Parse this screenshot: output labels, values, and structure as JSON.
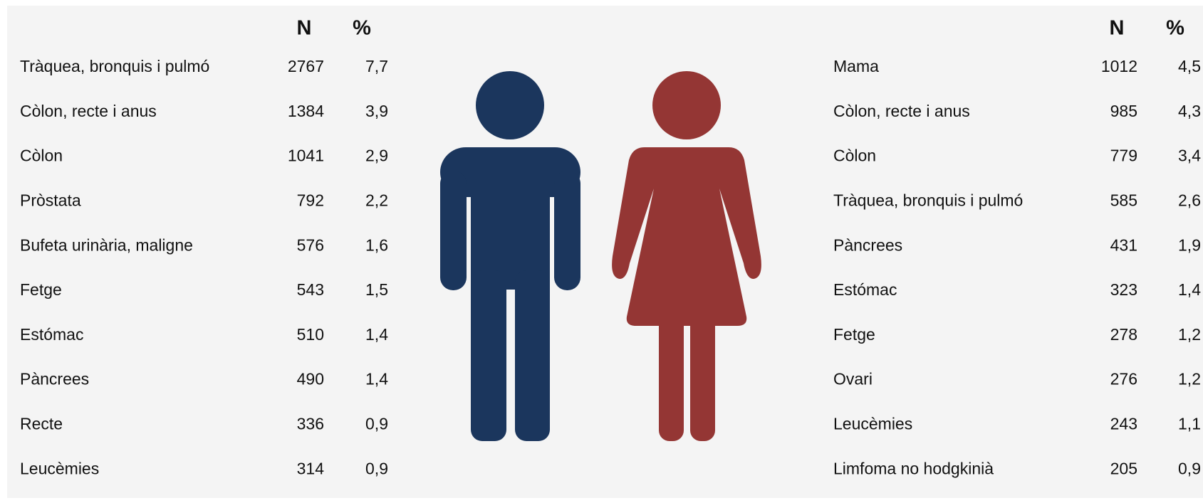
{
  "tables": [
    {
      "header": [
        "N",
        "%"
      ],
      "rows": [
        [
          "Tràquea, bronquis i pulmó",
          "2767",
          "7,7"
        ],
        [
          "Còlon, recte i anus",
          "1384",
          "3,9"
        ],
        [
          "Còlon",
          "1041",
          "2,9"
        ],
        [
          "Pròstata",
          "792",
          "2,2"
        ],
        [
          "Bufeta urinària, maligne",
          "576",
          "1,6"
        ],
        [
          "Fetge",
          "543",
          "1,5"
        ],
        [
          "Estómac",
          "510",
          "1,4"
        ],
        [
          "Pàncrees",
          "490",
          "1,4"
        ],
        [
          "Recte",
          "336",
          "0,9"
        ],
        [
          "Leucèmies",
          "314",
          "0,9"
        ]
      ]
    },
    {
      "header": [
        "N",
        "%"
      ],
      "rows": [
        [
          "Mama",
          "1012",
          "4,5"
        ],
        [
          "Còlon, recte i anus",
          "985",
          "4,3"
        ],
        [
          "Còlon",
          "779",
          "3,4"
        ],
        [
          "Tràquea, bronquis i pulmó",
          "585",
          "2,6"
        ],
        [
          "Pàncrees",
          "431",
          "1,9"
        ],
        [
          "Estómac",
          "323",
          "1,4"
        ],
        [
          "Fetge",
          "278",
          "1,2"
        ],
        [
          "Ovari",
          "276",
          "1,2"
        ],
        [
          "Leucèmies",
          "243",
          "1,1"
        ],
        [
          "Limfoma no hodgkinià",
          "205",
          "0,9"
        ]
      ]
    }
  ]
}
